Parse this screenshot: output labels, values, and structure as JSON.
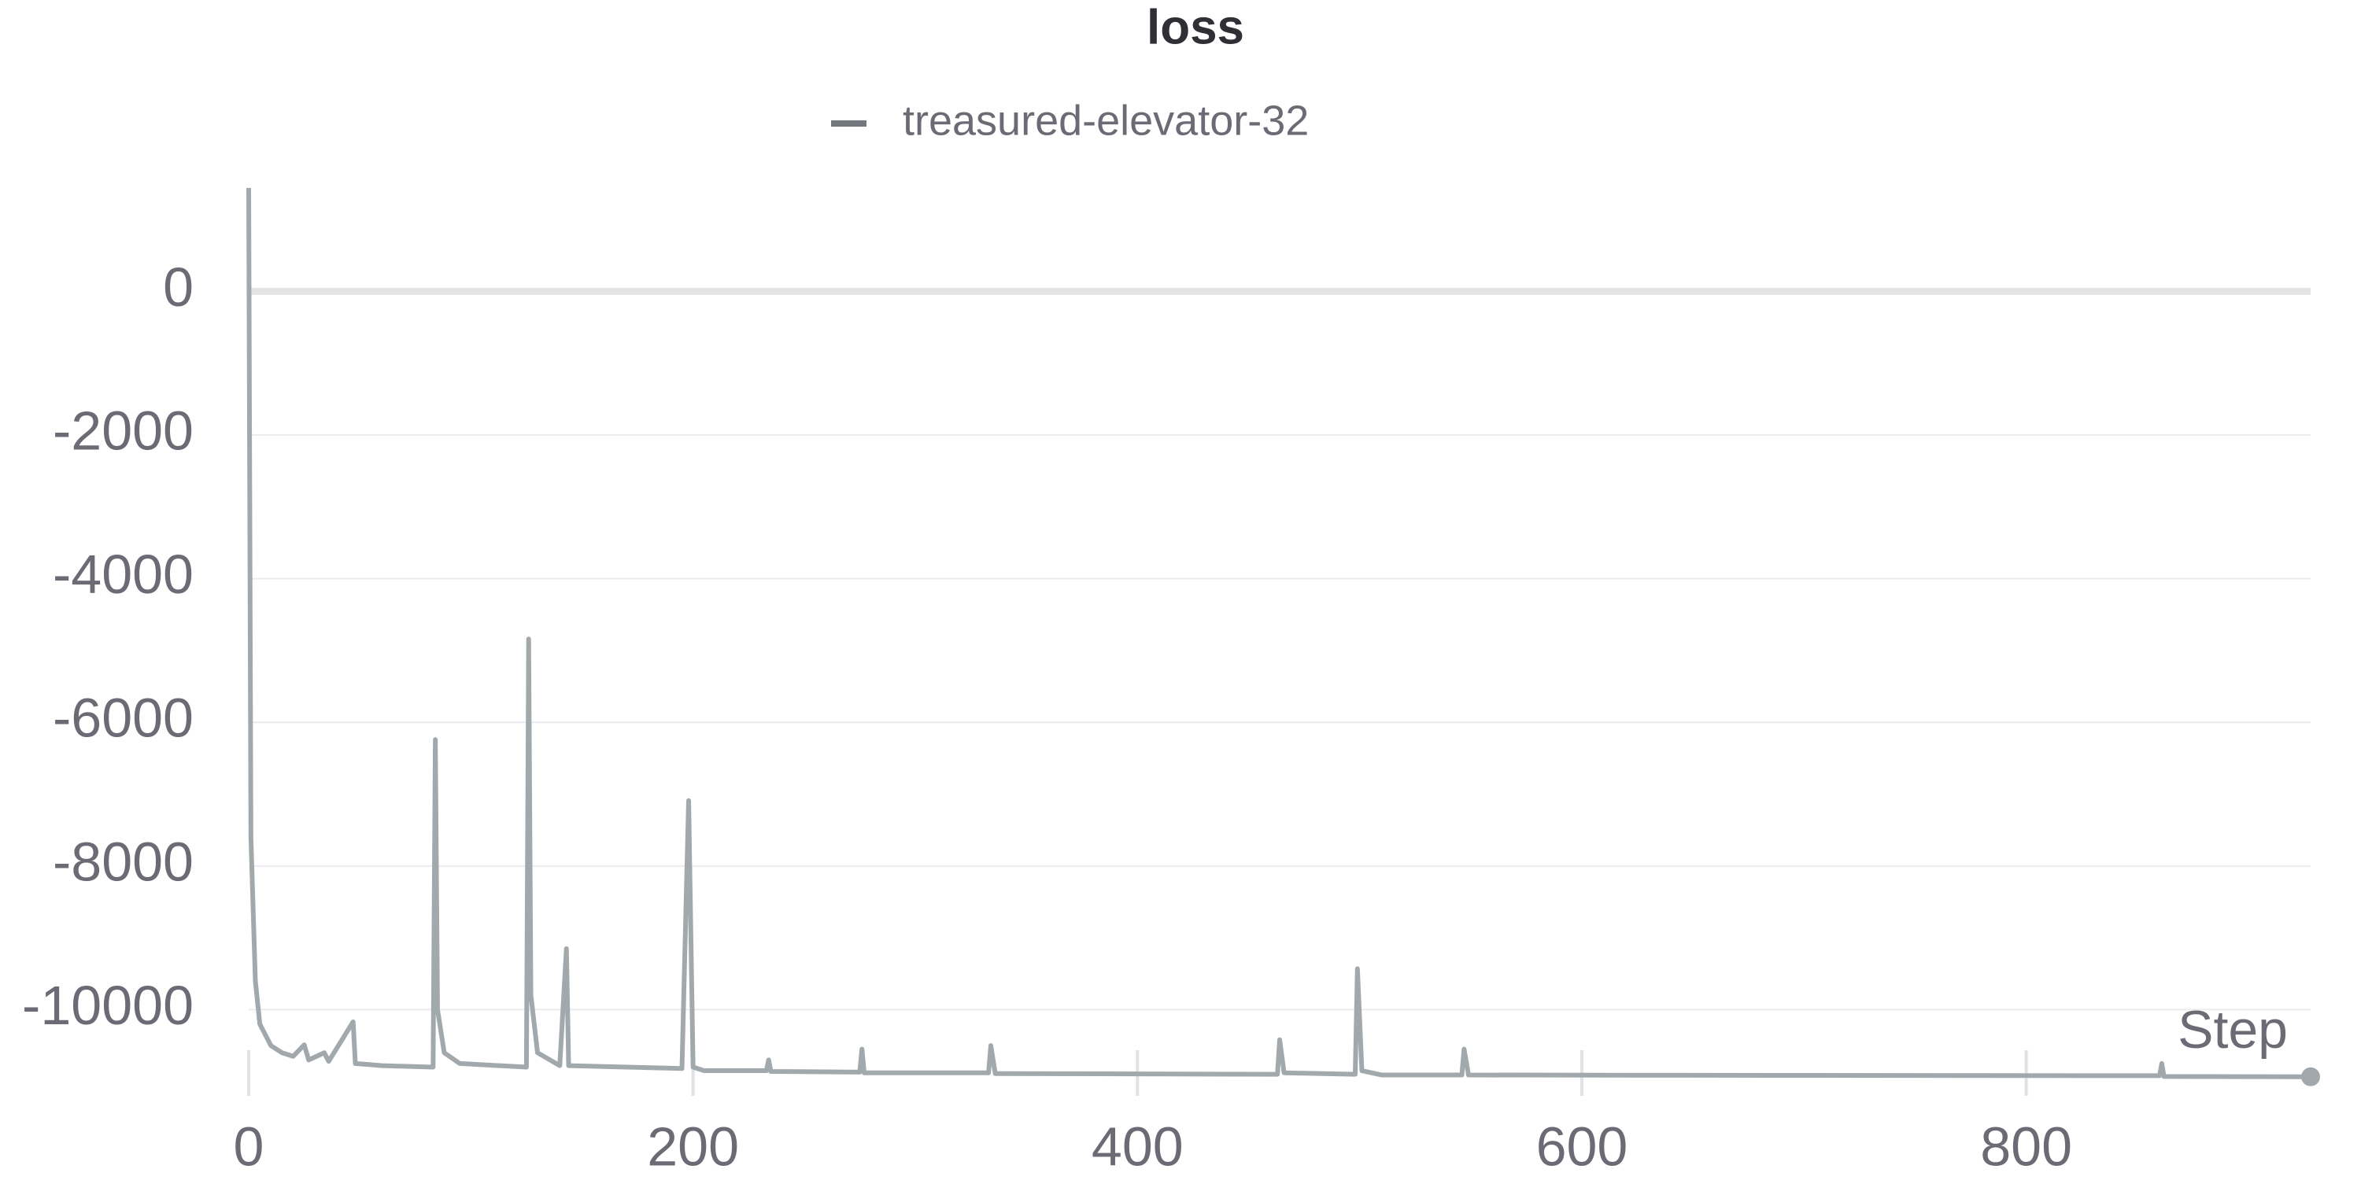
{
  "chart_data": {
    "type": "line",
    "title": "loss",
    "x_label": "Step",
    "x": [
      0,
      1,
      3,
      5,
      10,
      15,
      20,
      25,
      27,
      34,
      36,
      47,
      48,
      60,
      83,
      84,
      85,
      88,
      95,
      125,
      126,
      127,
      130,
      140,
      143,
      144,
      195,
      198,
      200,
      205,
      233,
      234,
      235,
      275,
      276,
      277,
      333,
      334,
      336,
      463,
      464,
      466,
      498,
      499,
      501,
      510,
      546,
      547,
      549,
      860,
      861,
      862,
      928
    ],
    "series": [
      {
        "name": "treasured-elevator-32",
        "color": "#a2a9ad",
        "values": [
          1440,
          -7600,
          -9600,
          -10200,
          -10500,
          -10600,
          -10650,
          -10490,
          -10700,
          -10600,
          -10720,
          -10170,
          -10750,
          -10780,
          -10800,
          -6240,
          -10000,
          -10600,
          -10750,
          -10800,
          -4840,
          -9800,
          -10600,
          -10780,
          -9150,
          -10780,
          -10820,
          -7090,
          -10800,
          -10850,
          -10850,
          -10700,
          -10860,
          -10870,
          -10550,
          -10880,
          -10880,
          -10500,
          -10890,
          -10900,
          -10420,
          -10880,
          -10900,
          -9430,
          -10850,
          -10910,
          -10910,
          -10550,
          -10910,
          -10920,
          -10750,
          -10930,
          -10935
        ]
      }
    ],
    "xlim": [
      0,
      928
    ],
    "ylim": [
      -11200,
      1450
    ],
    "xticks": [
      0,
      200,
      400,
      600,
      800
    ],
    "yticks": [
      0,
      -2000,
      -4000,
      -6000,
      -8000,
      -10000
    ],
    "grid": true
  }
}
